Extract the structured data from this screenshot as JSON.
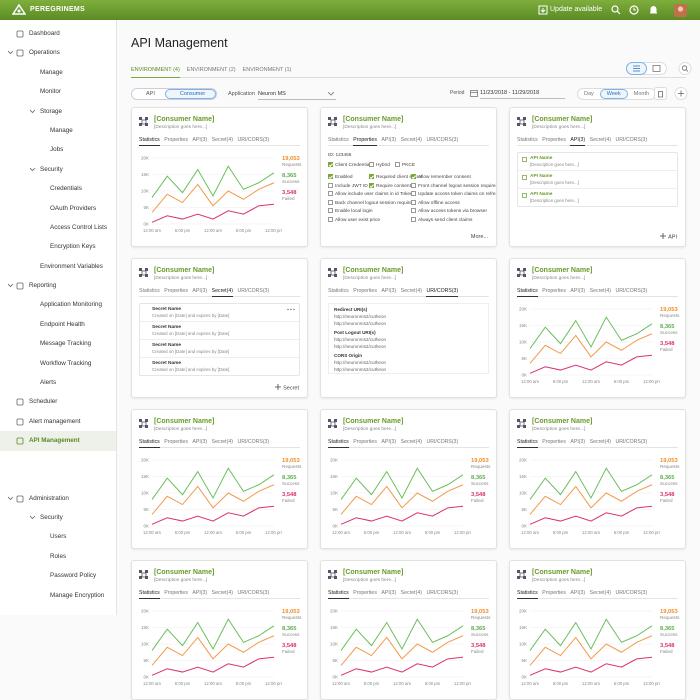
{
  "header": {
    "brand": "PEREGRINEMS",
    "update": "Update available"
  },
  "nav": [
    {
      "label": "Dashboard"
    },
    {
      "label": "Operations",
      "children": [
        {
          "label": "Manage"
        },
        {
          "label": "Monitor"
        },
        {
          "label": "Storage",
          "children": [
            {
              "label": "Manage"
            },
            {
              "label": "Jobs"
            }
          ]
        },
        {
          "label": "Security",
          "children": [
            {
              "label": "Credentials"
            },
            {
              "label": "OAuth Providers"
            },
            {
              "label": "Access Control Lists"
            },
            {
              "label": "Encryption Keys"
            }
          ]
        },
        {
          "label": "Environment Variables"
        }
      ]
    },
    {
      "label": "Reporting",
      "children": [
        {
          "label": "Application Monitoring"
        },
        {
          "label": "Endpoint Health"
        },
        {
          "label": "Message Tracking"
        },
        {
          "label": "Workflow Tracking"
        },
        {
          "label": "Alerts"
        }
      ]
    },
    {
      "label": "Scheduler"
    },
    {
      "label": "Alert management"
    },
    {
      "label": "API Management",
      "active": true
    },
    {
      "label": "Administration",
      "children": [
        {
          "label": "Security",
          "children": [
            {
              "label": "Users"
            },
            {
              "label": "Roles"
            },
            {
              "label": "Password Policy"
            },
            {
              "label": "Manage Encryption"
            }
          ]
        }
      ]
    }
  ],
  "page": {
    "title": "API Management",
    "tabs": [
      "ENVIRONMENT (4)",
      "ENVIRONMENT (2)",
      "ENVIRONMENT (1)"
    ],
    "active_tab": 0
  },
  "toolbar": {
    "toggle": [
      "API",
      "Consumer"
    ],
    "toggle_active": 1,
    "application_label": "Application",
    "application": "Neuron MS",
    "period_label": "Period",
    "period": "11/23/2018 - 11/29/2018",
    "ranges": [
      "Day",
      "Week",
      "Month"
    ],
    "range_active": 1
  },
  "chart": {
    "type": "line",
    "categories": [
      "12:00 am",
      null,
      "6:00 pm",
      null,
      "12:00 am",
      null,
      "6:00 pm",
      null,
      "12:00 pm"
    ],
    "ylim": [
      0,
      20000
    ],
    "yticks": [
      {
        "value": 0,
        "label": "0K"
      },
      {
        "value": 5000,
        "label": "5K"
      },
      {
        "value": 10000,
        "label": "10K"
      },
      {
        "value": 15000,
        "label": "15K"
      },
      {
        "value": 20000,
        "label": "20K"
      }
    ],
    "series": [
      {
        "color": "#6cbf5e",
        "values": [
          8000,
          14500,
          9500,
          16500,
          8500,
          17500,
          10500,
          12500,
          15500
        ]
      },
      {
        "color": "#f39a4c",
        "values": [
          3500,
          9000,
          6500,
          12000,
          5500,
          10000,
          7500,
          10500,
          12500
        ]
      },
      {
        "color": "#d9336e",
        "values": [
          500,
          2500,
          1500,
          3000,
          1500,
          4000,
          3000,
          5500,
          6000
        ]
      }
    ],
    "stats": [
      {
        "value": "19,053",
        "label": "Requests",
        "color": "#f08c2a"
      },
      {
        "value": "8,365",
        "label": "Success",
        "color": "#5cae4e"
      },
      {
        "value": "3,548",
        "label": "Failed",
        "color": "#d9336e"
      }
    ]
  },
  "cards": [
    {
      "name": "[Consumer Name]",
      "description": "[Description goes here...]",
      "tabs": [
        "Statistics",
        "Properties",
        "API(3)",
        "Secret(4)",
        "URI/CORS(3)"
      ],
      "active": 0,
      "kind": "stats"
    },
    {
      "name": "[Consumer Name]",
      "description": "[Description goes here...]",
      "tabs": [
        "Statistics",
        "Properties",
        "API(3)",
        "Secret(4)",
        "URI/CORS(3)"
      ],
      "active": 1,
      "kind": "properties",
      "id": "ID: 123456",
      "grants": [
        {
          "label": "Client Credentials",
          "checked": true
        },
        {
          "label": "Hybrid",
          "checked": false
        },
        {
          "label": "PKCE",
          "checked": false
        }
      ],
      "options": [
        [
          {
            "label": "Enabled",
            "checked": true
          },
          {
            "label": "Include JWT ID",
            "checked": false
          },
          {
            "label": "Allow include user claims in id Token",
            "checked": false
          },
          {
            "label": "Back channel logout session required",
            "checked": false
          },
          {
            "label": "Enable local login",
            "checked": false
          },
          {
            "label": "Allow user exist price",
            "checked": false
          }
        ],
        [
          {
            "label": "Required client secret",
            "checked": true
          },
          {
            "label": "Require consent",
            "checked": true
          }
        ],
        [
          {
            "label": "Allow remember consent",
            "checked": true
          },
          {
            "label": "Front channel logout session required",
            "checked": false
          },
          {
            "label": "Update access token claims on refresh",
            "checked": false
          },
          {
            "label": "Allow offline access",
            "checked": false
          },
          {
            "label": "Allow access tokens via browser",
            "checked": false
          },
          {
            "label": "Always send client claims",
            "checked": false
          }
        ]
      ],
      "more": "More..."
    },
    {
      "name": "[Consumer Name]",
      "description": "[Description goes here...]",
      "tabs": [
        "Statistics",
        "Properties",
        "API(3)",
        "Secret(4)",
        "URI/CORS(3)"
      ],
      "active": 2,
      "kind": "api",
      "items": [
        {
          "name": "API Name",
          "description": "[Description goes here...]"
        },
        {
          "name": "API Name",
          "description": "[Description goes here...]"
        },
        {
          "name": "API Name",
          "description": "[Description goes here...]"
        }
      ],
      "add": "API"
    },
    {
      "name": "[Consumer Name]",
      "description": "[Description goes here...]",
      "tabs": [
        "Statistics",
        "Properties",
        "API(3)",
        "Secret(4)",
        "URI/CORS(3)"
      ],
      "active": 3,
      "kind": "secret",
      "items": [
        {
          "name": "Secret Name",
          "detail": "Created on [Date] and expires by [Date]"
        },
        {
          "name": "Secret Name",
          "detail": "Created on [Date] and expires by [Date]"
        },
        {
          "name": "Secret Name",
          "detail": "Created on [Date] and expires by [Date]"
        },
        {
          "name": "Secret Name",
          "detail": "Created on [Date] and expires by [Date]"
        }
      ],
      "add": "Secret"
    },
    {
      "name": "[Consumer Name]",
      "description": "[Description goes here...]",
      "tabs": [
        "Statistics",
        "Properties",
        "API(3)",
        "Secret(4)",
        "URI/CORS(3)"
      ],
      "active": 4,
      "kind": "uri",
      "sections": [
        {
          "title": "Redirect URI(s)",
          "urls": [
            "http://neuronms2/cutheon",
            "http://neuronms2/cutheon"
          ]
        },
        {
          "title": "Post Logout URI(s)",
          "urls": [
            "http://neuronms2/cutheon",
            "http://neuronms2/cutheon"
          ]
        },
        {
          "title": "CORS Origin",
          "urls": [
            "http://neuronms2/cutheon",
            "http://neuronms2/cutheon"
          ]
        }
      ]
    },
    {
      "name": "[Consumer Name]",
      "description": "[Description goes here...]",
      "tabs": [
        "Statistics",
        "Properties",
        "API(3)",
        "Secret(4)",
        "URI/CORS(3)"
      ],
      "active": 0,
      "kind": "stats"
    },
    {
      "name": "[Consumer Name]",
      "description": "[Description goes here...]",
      "tabs": [
        "Statistics",
        "Properties",
        "API(3)",
        "Secret(4)",
        "URI/CORS(3)"
      ],
      "active": 0,
      "kind": "stats"
    },
    {
      "name": "[Consumer Name]",
      "description": "[Description goes here...]",
      "tabs": [
        "Statistics",
        "Properties",
        "API(3)",
        "Secret(4)",
        "URI/CORS(3)"
      ],
      "active": 0,
      "kind": "stats"
    },
    {
      "name": "[Consumer Name]",
      "description": "[Description goes here...]",
      "tabs": [
        "Statistics",
        "Properties",
        "API(3)",
        "Secret(4)",
        "URI/CORS(3)"
      ],
      "active": 0,
      "kind": "stats"
    },
    {
      "name": "[Consumer Name]",
      "description": "[Description goes here...]",
      "tabs": [
        "Statistics",
        "Properties",
        "API(3)",
        "Secret(4)",
        "URI/CORS(3)"
      ],
      "active": 0,
      "kind": "stats"
    },
    {
      "name": "[Consumer Name]",
      "description": "[Description goes here...]",
      "tabs": [
        "Statistics",
        "Properties",
        "API(3)",
        "Secret(4)",
        "URI/CORS(3)"
      ],
      "active": 0,
      "kind": "stats"
    },
    {
      "name": "[Consumer Name]",
      "description": "[Description goes here...]",
      "tabs": [
        "Statistics",
        "Properties",
        "API(3)",
        "Secret(4)",
        "URI/CORS(3)"
      ],
      "active": 0,
      "kind": "stats"
    }
  ]
}
